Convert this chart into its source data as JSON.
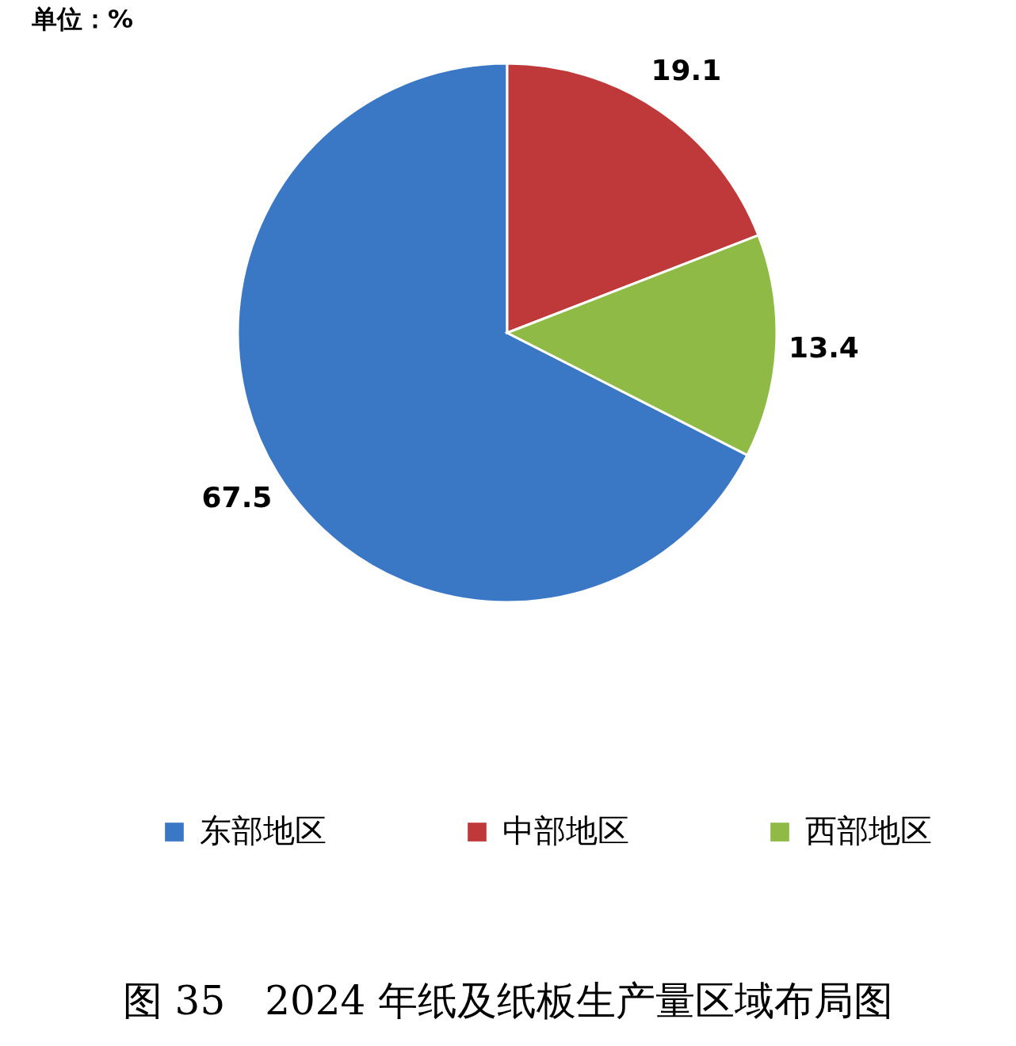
{
  "chart_data": {
    "type": "pie",
    "title": "图 35　2024 年纸及纸板生产量区域布局图",
    "annotations": [
      "单位：%"
    ],
    "categories": [
      "东部地区",
      "中部地区",
      "西部地区"
    ],
    "values": [
      67.5,
      19.1,
      13.4
    ],
    "colors": [
      "#3a78c5",
      "#c0393a",
      "#8fba45"
    ],
    "data_labels": true,
    "legend": "bottom"
  }
}
